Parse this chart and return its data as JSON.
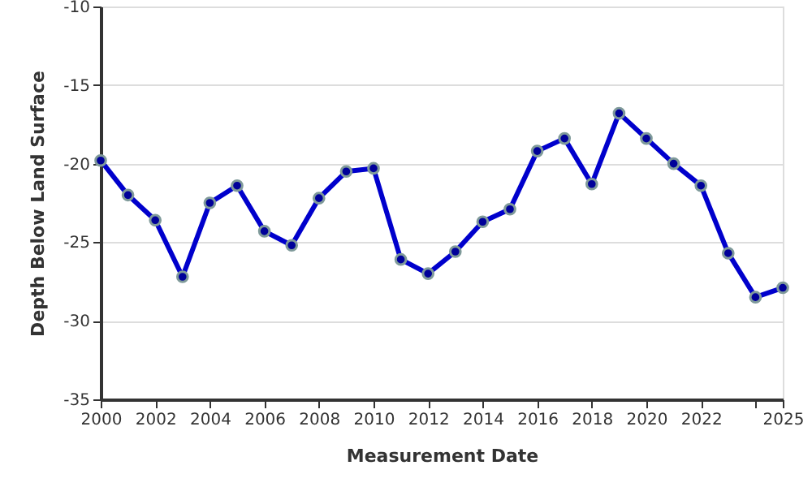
{
  "chart_data": {
    "type": "line",
    "xlabel": "Measurement Date",
    "ylabel": "Depth Below Land Surface",
    "x": [
      2000,
      2001,
      2002,
      2003,
      2004,
      2005,
      2006,
      2007,
      2008,
      2009,
      2010,
      2011,
      2012,
      2013,
      2014,
      2015,
      2016,
      2017,
      2018,
      2019,
      2020,
      2021,
      2022,
      2023,
      2024,
      2025
    ],
    "series": [
      {
        "color": "#0000cc",
        "values": [
          -19.8,
          -22.0,
          -23.6,
          -27.2,
          -22.5,
          -21.4,
          -24.3,
          -25.2,
          -22.2,
          -20.5,
          -20.3,
          -26.1,
          -27.0,
          -25.6,
          -23.7,
          -22.9,
          -19.2,
          -18.4,
          -21.3,
          -16.8,
          -18.4,
          -20.0,
          -21.4,
          -25.7,
          -28.5,
          -27.9
        ]
      }
    ],
    "xlim": [
      2000,
      2025
    ],
    "xticks": [
      2000,
      2002,
      2004,
      2006,
      2008,
      2010,
      2012,
      2014,
      2016,
      2018,
      2020,
      2022,
      {
        "value": 2024,
        "label": null
      },
      2025
    ],
    "ylim": [
      -35,
      -10
    ],
    "yticks": [
      -35,
      -30,
      -25,
      -20,
      -15,
      -10
    ],
    "grid": "y",
    "marker": "circle",
    "line_style": "solid"
  }
}
